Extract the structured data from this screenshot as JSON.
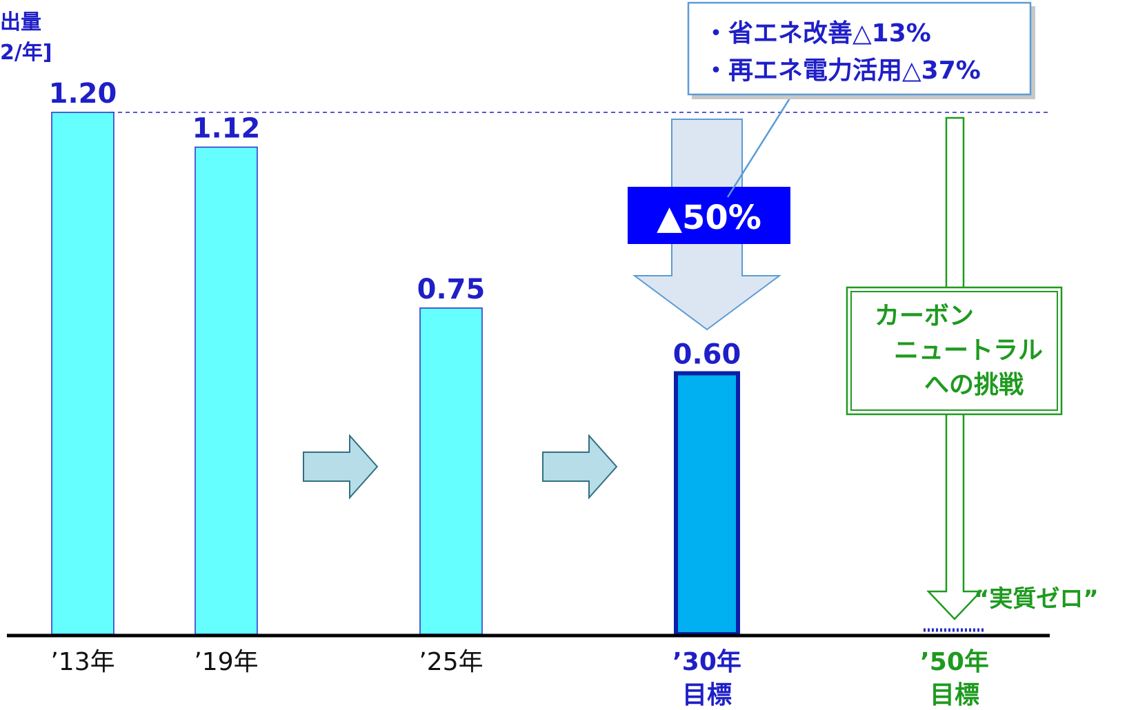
{
  "colors": {
    "bar": "#66FFFF",
    "bar_target": "#00B0F0",
    "navy": "#1F1FC8",
    "green": "#1E9A1E",
    "badge": "#0000FF",
    "arrow_fill": "#DCE6F2",
    "arrow_stroke": "#5B9BD5",
    "small_arrow_fill": "#B7DDE8",
    "small_arrow_stroke": "#31707F"
  },
  "ylabel": {
    "line1": "出量",
    "line2": "2/年]"
  },
  "callout": {
    "line1": "・省エネ改善△13%",
    "line2": "・再エネ電力活用△37%"
  },
  "badge": {
    "text": "▲50%"
  },
  "cn_box": {
    "line1": "カーボン",
    "line2": "ニュートラル",
    "line3": "への挑戦"
  },
  "zero_label": "“実質ゼロ”",
  "chart_data": {
    "type": "bar",
    "categories": [
      "'13年",
      "'19年",
      "'25年",
      "'30年 目標",
      "'50年 目標"
    ],
    "values": [
      1.2,
      1.12,
      0.75,
      0.6,
      0
    ],
    "value_labels": [
      "1.20",
      "1.12",
      "0.75",
      "0.60",
      ""
    ],
    "tick_labels": [
      {
        "line1": "’13年",
        "line2": ""
      },
      {
        "line1": "’19年",
        "line2": ""
      },
      {
        "line1": "’25年",
        "line2": ""
      },
      {
        "line1": "’30年",
        "line2": "目標"
      },
      {
        "line1": "’50年",
        "line2": "目標"
      }
    ],
    "ylim": [
      0,
      1.2
    ],
    "reference_line": 1.2,
    "grid": false,
    "legend": "none"
  }
}
